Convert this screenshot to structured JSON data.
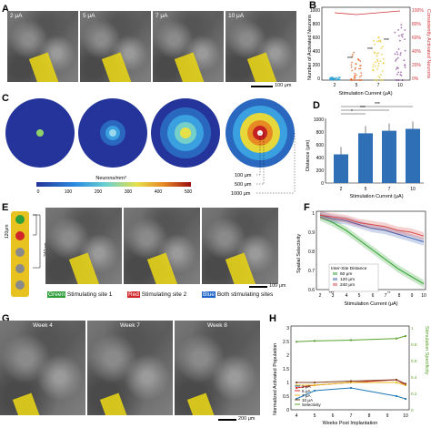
{
  "panels": {
    "A": "A",
    "B": "B",
    "C": "C",
    "D": "D",
    "E": "E",
    "F": "F",
    "G": "G",
    "H": "H"
  },
  "panelA": {
    "frames": [
      "2 μA",
      "5 μA",
      "7 μA",
      "10 μA"
    ],
    "scale": "100 μm"
  },
  "panelB": {
    "ylabel_left": "Number of Activated Neurons",
    "ylabel_right": "Consistently Activated Neurons",
    "xlabel": "Stimulation Current (μA)",
    "xticks": [
      "2",
      "5",
      "7",
      "10"
    ],
    "yticks_left": [
      "0",
      "200",
      "400",
      "600",
      "800",
      "1000"
    ],
    "yticks_right": [
      "0%",
      "20%",
      "40%",
      "60%",
      "80%",
      "100%"
    ],
    "sig": [
      "***",
      "***",
      "***"
    ],
    "colors": {
      "c2": "#2aa2d8",
      "c5": "#e05a1a",
      "c7": "#e7c31a",
      "c10": "#7a3a8a",
      "pct": "#d0343a"
    }
  },
  "panelC": {
    "colorbar_label": "Neurons/mm³",
    "colorbar_ticks": [
      "0",
      "100",
      "200",
      "300",
      "400",
      "500"
    ],
    "radii": [
      "100 μm",
      "500 μm",
      "1000 μm"
    ]
  },
  "panelD": {
    "ylabel": "Distance (μm)",
    "xlabel": "Stimulation Current (μA)",
    "xticks": [
      "2",
      "5",
      "7",
      "10"
    ],
    "yticks": [
      "0",
      "200",
      "400",
      "600",
      "800",
      "1000"
    ],
    "sig": [
      "*",
      "***",
      "*",
      "***",
      "*"
    ]
  },
  "panelE": {
    "spacing": [
      "120μm",
      "240μm"
    ],
    "legend": [
      {
        "key": "Green",
        "text": "Stimulating site 1",
        "color": "#2e9e3a"
      },
      {
        "key": "Red",
        "text": "Stimulating site 2",
        "color": "#d0262a"
      },
      {
        "key": "Blue",
        "text": "Both stimulating sites",
        "color": "#1e64c8"
      }
    ],
    "scale": "100 μm"
  },
  "panelF": {
    "ylabel": "Spatial Selectivity",
    "xlabel": "Stimulation Current (μA)",
    "xticks": [
      "2",
      "3",
      "4",
      "5",
      "6",
      "7",
      "8",
      "9",
      "10"
    ],
    "yticks": [
      "0.6",
      "0.7",
      "0.8",
      "0.9",
      "1"
    ],
    "legend_title": "Inter-Site Distance",
    "series": [
      {
        "name": "60 μm",
        "color": "#2ca02c"
      },
      {
        "name": "120 μm",
        "color": "#3a5fb0"
      },
      {
        "name": "240 μm",
        "color": "#d94a4a"
      }
    ],
    "sig": [
      "***",
      "***",
      "***",
      "***",
      "***",
      "***",
      "**",
      "*",
      "*"
    ]
  },
  "panelG": {
    "frames": [
      "Week 4",
      "Week 7",
      "Week 8"
    ],
    "scale": "200 μm"
  },
  "panelH": {
    "ylabel_left": "Normalized Activated Population",
    "ylabel_right": "Stimulation Specificity",
    "xlabel": "Weeks Post Implantation",
    "xticks": [
      "4",
      "5",
      "6",
      "7",
      "8",
      "9",
      "10"
    ],
    "yticks_left": [
      "0",
      "0.5",
      "1",
      "1.5",
      "2",
      "2.5",
      "3"
    ],
    "yticks_right": [
      "0",
      "0.1",
      "0.2",
      "0.3",
      "0.4",
      "0.5",
      "0.6",
      "0.7",
      "0.8",
      "0.9",
      "1"
    ],
    "legend": [
      {
        "name": "2 μA",
        "color": "#1f77b4"
      },
      {
        "name": "5 μA",
        "color": "#d62728"
      },
      {
        "name": "7 μA",
        "color": "#e8b923"
      },
      {
        "name": "10 μA",
        "color": "#7f3f1f"
      },
      {
        "name": "Selectivity",
        "color": "#5aa02c"
      }
    ]
  },
  "chart_data": [
    {
      "type": "scatter",
      "panel": "B",
      "xlabel": "Stimulation Current (μA)",
      "ylabel": "Number of Activated Neurons",
      "categories": [
        "2",
        "5",
        "7",
        "10"
      ],
      "series": [
        {
          "values": [
            20,
            180,
            260,
            320
          ]
        }
      ],
      "ylim": [
        0,
        1000
      ]
    },
    {
      "type": "bar",
      "panel": "D",
      "categories": [
        "2",
        "5",
        "7",
        "10"
      ],
      "values": [
        450,
        780,
        820,
        850
      ],
      "xlabel": "Stimulation Current (μA)",
      "ylabel": "Distance (μm)",
      "ylim": [
        0,
        1000
      ]
    },
    {
      "type": "line",
      "panel": "F",
      "x": [
        2,
        3,
        4,
        5,
        6,
        7,
        8,
        9,
        10
      ],
      "series": [
        {
          "name": "60 μm",
          "values": [
            0.98,
            0.95,
            0.91,
            0.86,
            0.81,
            0.76,
            0.71,
            0.67,
            0.63
          ]
        },
        {
          "name": "120 μm",
          "values": [
            0.99,
            0.97,
            0.96,
            0.94,
            0.92,
            0.91,
            0.89,
            0.87,
            0.85
          ]
        },
        {
          "name": "240 μm",
          "values": [
            0.99,
            0.98,
            0.97,
            0.95,
            0.94,
            0.93,
            0.91,
            0.9,
            0.88
          ]
        }
      ],
      "xlabel": "Stimulation Current (μA)",
      "ylabel": "Spatial Selectivity",
      "ylim": [
        0.6,
        1.0
      ]
    },
    {
      "type": "line",
      "panel": "H",
      "x": [
        4,
        5,
        7,
        9.5,
        10
      ],
      "series": [
        {
          "name": "2 μA",
          "values": [
            0.4,
            0.7,
            0.8,
            0.5,
            0.4
          ]
        },
        {
          "name": "5 μA",
          "values": [
            0.8,
            0.9,
            1.0,
            1.1,
            0.9
          ]
        },
        {
          "name": "7 μA",
          "values": [
            0.9,
            0.9,
            1.0,
            1.0,
            0.9
          ]
        },
        {
          "name": "10 μA",
          "values": [
            1.0,
            1.0,
            1.05,
            1.1,
            0.95
          ]
        },
        {
          "name": "Selectivity",
          "values": [
            0.83,
            0.84,
            0.85,
            0.87,
            0.9
          ]
        }
      ],
      "xlabel": "Weeks Post Implantation",
      "ylabel": "Normalized Activated Population",
      "ylim": [
        0,
        3
      ]
    }
  ]
}
